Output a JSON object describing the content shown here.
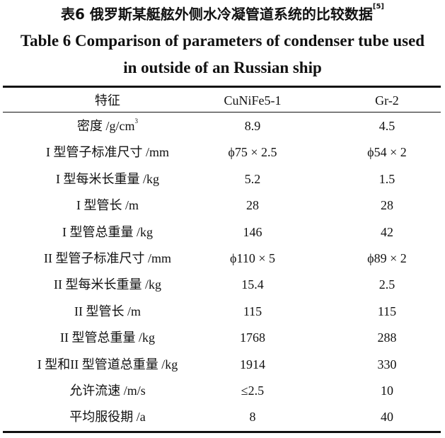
{
  "caption": {
    "zh": "表6 俄罗斯某艇舷外侧水冷凝管道系统的比较数据",
    "zh_ref": "[5]",
    "en_line1": "Table 6  Comparison of parameters of condenser tube used",
    "en_line2": "in outside of an Russian ship"
  },
  "table": {
    "headers": [
      "特征",
      "CuNiFe5-1",
      "Gr-2"
    ],
    "rows": [
      {
        "feature": "密度 /g/cm",
        "feature_sup": "3",
        "cunife": "8.9",
        "gr2": "4.5"
      },
      {
        "feature": "I 型管子标准尺寸 /mm",
        "cunife": "ϕ75 × 2.5",
        "gr2": "ϕ54 × 2"
      },
      {
        "feature": "I 型每米长重量 /kg",
        "cunife": "5.2",
        "gr2": "1.5"
      },
      {
        "feature": "I 型管长 /m",
        "cunife": "28",
        "gr2": "28"
      },
      {
        "feature": "I 型管总重量 /kg",
        "cunife": "146",
        "gr2": "42"
      },
      {
        "feature": "II 型管子标准尺寸 /mm",
        "cunife": "ϕ110 × 5",
        "gr2": "ϕ89 × 2"
      },
      {
        "feature": "II 型每米长重量 /kg",
        "cunife": "15.4",
        "gr2": "2.5"
      },
      {
        "feature": "II 型管长 /m",
        "cunife": "115",
        "gr2": "115"
      },
      {
        "feature": "II 型管总重量 /kg",
        "cunife": "1768",
        "gr2": "288"
      },
      {
        "feature": "I 型和II 型管道总重量 /kg",
        "cunife": "1914",
        "gr2": "330"
      },
      {
        "feature": "允许流速 /m/s",
        "cunife": "≤2.5",
        "gr2": "10"
      },
      {
        "feature": "平均服役期 /a",
        "cunife": "8",
        "gr2": "40"
      }
    ]
  }
}
